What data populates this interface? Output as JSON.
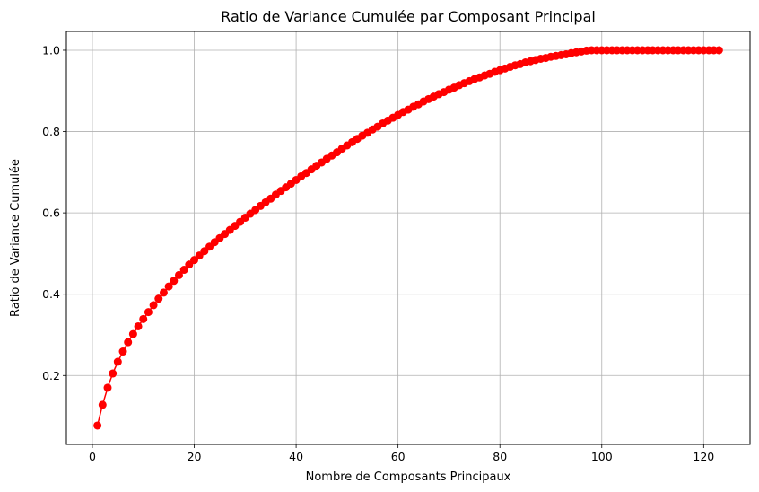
{
  "chart_data": {
    "type": "line",
    "title": "Ratio de Variance Cumulée par Composant Principal",
    "xlabel": "Nombre de Composants Principaux",
    "ylabel": "Ratio de Variance Cumulée",
    "xlim": [
      -5.1,
      129.1
    ],
    "ylim": [
      0.0306,
      1.0463
    ],
    "x_ticks": [
      0,
      20,
      40,
      60,
      80,
      100,
      120
    ],
    "y_ticks": [
      0.2,
      0.4,
      0.6,
      0.8,
      1.0
    ],
    "x_tick_labels": [
      "0",
      "20",
      "40",
      "60",
      "80",
      "100",
      "120"
    ],
    "y_tick_labels": [
      "0.2",
      "0.4",
      "0.6",
      "0.8",
      "1.0"
    ],
    "grid": true,
    "marker": "o",
    "color": "#ff0000",
    "series": [
      {
        "x": [
          1,
          2,
          3,
          4,
          5,
          6,
          7,
          8,
          9,
          10,
          11,
          12,
          13,
          14,
          15,
          16,
          17,
          18,
          19,
          20,
          21,
          22,
          23,
          24,
          25,
          26,
          27,
          28,
          29,
          30,
          31,
          32,
          33,
          34,
          35,
          36,
          37,
          38,
          39,
          40,
          41,
          42,
          43,
          44,
          45,
          46,
          47,
          48,
          49,
          50,
          51,
          52,
          53,
          54,
          55,
          56,
          57,
          58,
          59,
          60,
          61,
          62,
          63,
          64,
          65,
          66,
          67,
          68,
          69,
          70,
          71,
          72,
          73,
          74,
          75,
          76,
          77,
          78,
          79,
          80,
          81,
          82,
          83,
          84,
          85,
          86,
          87,
          88,
          89,
          90,
          91,
          92,
          93,
          94,
          95,
          96,
          97,
          98,
          99,
          100,
          101,
          102,
          103,
          104,
          105,
          106,
          107,
          108,
          109,
          110,
          111,
          112,
          113,
          114,
          115,
          116,
          117,
          118,
          119,
          120,
          121,
          122,
          123
        ],
        "values": [
          0.077,
          0.128,
          0.17,
          0.205,
          0.234,
          0.259,
          0.282,
          0.302,
          0.321,
          0.339,
          0.356,
          0.373,
          0.389,
          0.404,
          0.419,
          0.433,
          0.447,
          0.46,
          0.473,
          0.484,
          0.495,
          0.506,
          0.517,
          0.528,
          0.538,
          0.548,
          0.558,
          0.568,
          0.578,
          0.588,
          0.598,
          0.607,
          0.617,
          0.626,
          0.635,
          0.645,
          0.654,
          0.663,
          0.672,
          0.681,
          0.69,
          0.698,
          0.707,
          0.716,
          0.724,
          0.733,
          0.741,
          0.749,
          0.758,
          0.766,
          0.774,
          0.782,
          0.79,
          0.797,
          0.805,
          0.812,
          0.82,
          0.827,
          0.834,
          0.841,
          0.848,
          0.854,
          0.861,
          0.867,
          0.874,
          0.88,
          0.886,
          0.892,
          0.897,
          0.903,
          0.908,
          0.914,
          0.919,
          0.924,
          0.929,
          0.933,
          0.938,
          0.942,
          0.947,
          0.951,
          0.955,
          0.959,
          0.963,
          0.966,
          0.97,
          0.973,
          0.976,
          0.979,
          0.981,
          0.984,
          0.986,
          0.988,
          0.99,
          0.993,
          0.995,
          0.997,
          0.999,
          1.0,
          1.0,
          1.0,
          1.0,
          1.0,
          1.0,
          1.0,
          1.0,
          1.0,
          1.0,
          1.0,
          1.0,
          1.0,
          1.0,
          1.0,
          1.0,
          1.0,
          1.0,
          1.0,
          1.0,
          1.0,
          1.0,
          1.0,
          1.0,
          1.0,
          1.0
        ]
      }
    ]
  }
}
